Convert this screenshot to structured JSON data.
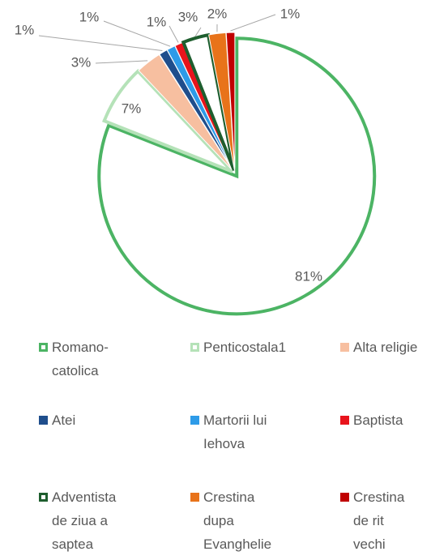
{
  "chart_data": {
    "type": "pie",
    "categories": [
      "Romano-catolica",
      "Penticostala1",
      "Alta religie",
      "Atei",
      "Martorii lui Iehova",
      "Baptista",
      "Adventista de ziua a saptea",
      "Crestina dupa Evanghelie",
      "Crestina de rit vechi"
    ],
    "values": [
      81,
      7,
      3,
      1,
      1,
      1,
      3,
      2,
      1
    ],
    "value_labels": [
      "81%",
      "7%",
      "3%",
      "1%",
      "1%",
      "1%",
      "3%",
      "2%",
      "1%"
    ],
    "colors": [
      "#4cb464",
      "#b5e2b8",
      "#f7bfa0",
      "#1f4e8c",
      "#2e9be8",
      "#e8141c",
      "#1e5e2e",
      "#e8731a",
      "#c00000"
    ],
    "filled": [
      false,
      false,
      true,
      true,
      true,
      true,
      false,
      true,
      true
    ],
    "legend": "bottom"
  }
}
